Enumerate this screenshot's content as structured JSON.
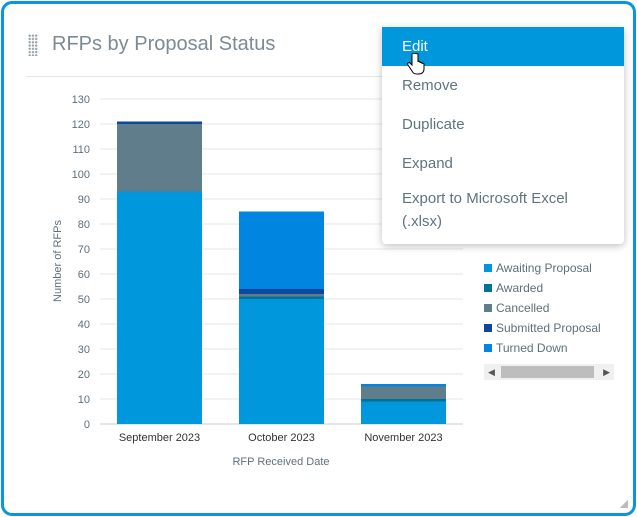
{
  "widget": {
    "title": "RFPs by Proposal Status"
  },
  "menu": {
    "items": [
      "Edit",
      "Remove",
      "Duplicate",
      "Expand",
      "Export to Microsoft Excel (.xlsx)"
    ],
    "active": "Edit"
  },
  "chart_data": {
    "type": "bar",
    "stacked": true,
    "categories": [
      "September 2023",
      "October 2023",
      "November 2023"
    ],
    "xlabel": "RFP Received Date",
    "ylabel": "Number of RFPs",
    "ylim": [
      0,
      130
    ],
    "yticks": [
      0,
      10,
      20,
      30,
      40,
      50,
      60,
      70,
      80,
      90,
      100,
      110,
      120,
      130
    ],
    "grid": true,
    "legend_position": "right",
    "series": [
      {
        "name": "Awaiting Proposal",
        "color": "#0097dc",
        "values": [
          93,
          50,
          9
        ]
      },
      {
        "name": "Awarded",
        "color": "#00729a",
        "values": [
          0,
          1,
          1
        ]
      },
      {
        "name": "Cancelled",
        "color": "#607d8b",
        "values": [
          27,
          1,
          5
        ]
      },
      {
        "name": "Submitted Proposal",
        "color": "#0d47a1",
        "values": [
          1,
          2,
          0
        ]
      },
      {
        "name": "Turned Down",
        "color": "#0086e0",
        "values": [
          0,
          31,
          1
        ]
      }
    ]
  },
  "colors": {
    "accent": "#0a96dc"
  }
}
